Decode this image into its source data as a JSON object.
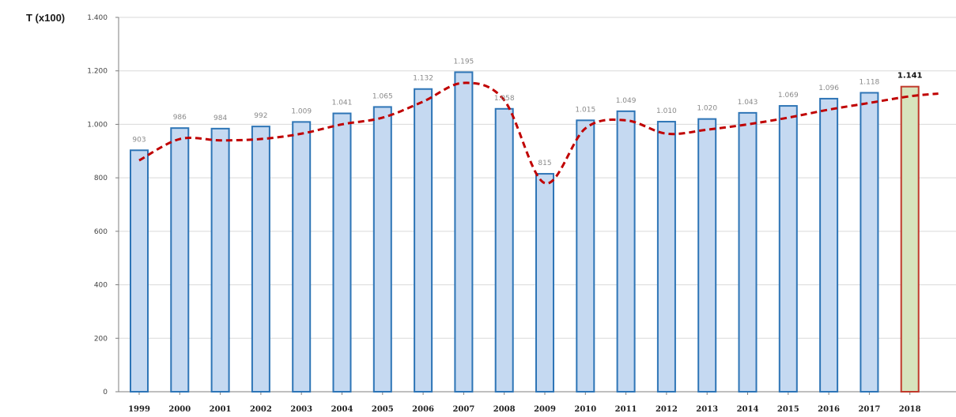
{
  "chart_data": {
    "type": "bar",
    "ylabel": "T (x100)",
    "categories": [
      "1999",
      "2000",
      "2001",
      "2002",
      "2003",
      "2004",
      "2005",
      "2006",
      "2007",
      "2008",
      "2009",
      "2010",
      "2011",
      "2012",
      "2013",
      "2014",
      "2015",
      "2016",
      "2017",
      "2018"
    ],
    "values": [
      903,
      986,
      984,
      992,
      1009,
      1041,
      1065,
      1132,
      1195,
      1058,
      815,
      1015,
      1049,
      1010,
      1020,
      1043,
      1069,
      1096,
      1118,
      1141
    ],
    "value_labels": [
      "903",
      "986",
      "984",
      "992",
      "1.009",
      "1.041",
      "1.065",
      "1.132",
      "1.195",
      "1.058",
      "815",
      "1.015",
      "1.049",
      "1.010",
      "1.020",
      "1.043",
      "1.069",
      "1.096",
      "1.118",
      "1.141"
    ],
    "highlight_index": 19,
    "yticks": [
      0,
      200,
      400,
      600,
      800,
      1000,
      1200,
      1400
    ],
    "ytick_labels": [
      "0",
      "200",
      "400",
      "600",
      "800",
      "1.000",
      "1.200",
      "1.400"
    ],
    "ylim": [
      0,
      1400
    ],
    "grid": true,
    "trend": {
      "style": "dashed",
      "x": [
        1999,
        2000,
        2001,
        2002,
        2003,
        2004,
        2005,
        2006,
        2007,
        2008,
        2009,
        2010,
        2011,
        2012,
        2013,
        2014,
        2015,
        2016,
        2017,
        2018,
        2018.7
      ],
      "y": [
        865,
        945,
        940,
        945,
        965,
        1000,
        1025,
        1085,
        1155,
        1090,
        780,
        985,
        1015,
        965,
        980,
        1000,
        1025,
        1055,
        1080,
        1105,
        1115
      ]
    },
    "colors": {
      "bar_fill": "#c5d9f1",
      "bar_stroke": "#2e75b6",
      "highlight_fill": "#d7e4bd",
      "highlight_stroke": "#c0392b",
      "trend": "#c00000",
      "grid": "#d9d9d9",
      "axis": "#7f7f7f"
    }
  }
}
